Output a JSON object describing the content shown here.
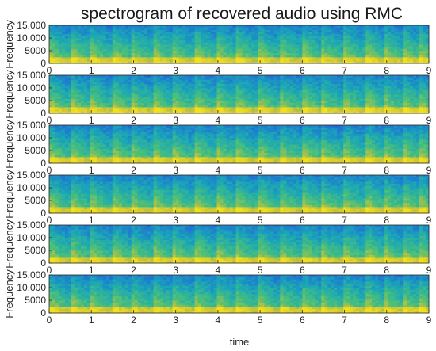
{
  "chart_data": {
    "title": "spectrogram of recovered audio using RMC",
    "type": "heatmap",
    "xlabel": "time",
    "ylabel": "Frequency",
    "xlim": [
      0,
      9
    ],
    "ylim": [
      0,
      15000
    ],
    "xticks": [
      "0",
      "1",
      "2",
      "3",
      "4",
      "5",
      "6",
      "7",
      "8",
      "9"
    ],
    "yticks": [
      "0",
      "5000",
      "10,000",
      "15,000"
    ],
    "colormap": [
      "#0d2a8a",
      "#1f6fd6",
      "#1aa6b8",
      "#49c07a",
      "#c9c13a",
      "#f1e11c"
    ],
    "panels": [
      {
        "onsets": [
          0.05,
          0.55,
          1.0,
          1.55,
          1.95,
          2.5,
          2.95,
          3.5,
          4.0,
          4.45,
          5.0,
          5.5,
          6.05,
          6.45,
          7.0,
          7.55,
          7.95,
          8.4,
          8.8
        ]
      },
      {
        "onsets": [
          0.05,
          0.55,
          1.0,
          1.55,
          1.95,
          2.5,
          2.95,
          3.5,
          4.0,
          4.45,
          5.0,
          5.5,
          6.05,
          6.45,
          7.0,
          7.55,
          7.95,
          8.4,
          8.8
        ]
      },
      {
        "onsets": [
          0.05,
          0.55,
          1.0,
          1.55,
          1.95,
          2.5,
          2.95,
          3.5,
          4.0,
          4.45,
          5.0,
          5.5,
          6.05,
          6.45,
          7.0,
          7.55,
          7.95,
          8.4,
          8.8
        ]
      },
      {
        "onsets": [
          0.05,
          0.55,
          1.0,
          1.55,
          1.95,
          2.5,
          2.95,
          3.5,
          4.0,
          4.45,
          5.0,
          5.5,
          6.05,
          6.45,
          7.0,
          7.55,
          7.95,
          8.4,
          8.8
        ]
      },
      {
        "onsets": [
          0.05,
          0.55,
          1.0,
          1.55,
          1.95,
          2.5,
          2.95,
          3.5,
          4.0,
          4.45,
          5.0,
          5.5,
          6.05,
          6.45,
          7.0,
          7.55,
          7.95,
          8.4,
          8.8
        ]
      },
      {
        "onsets": [
          0.05,
          0.55,
          1.0,
          1.55,
          1.95,
          2.5,
          2.95,
          3.5,
          4.0,
          4.45,
          5.0,
          5.5,
          6.05,
          6.45,
          7.0,
          7.55,
          7.95,
          8.4,
          8.8
        ]
      }
    ]
  }
}
